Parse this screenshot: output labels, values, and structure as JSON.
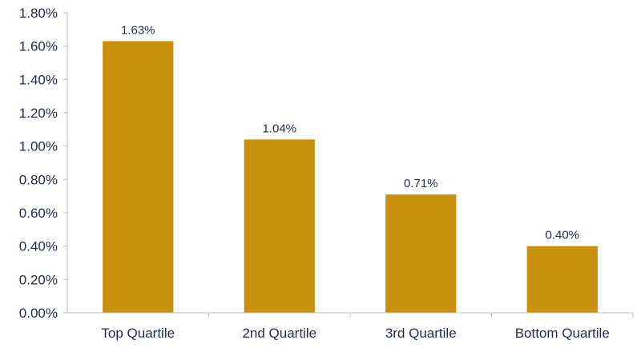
{
  "chart_data": {
    "type": "bar",
    "title": "",
    "xlabel": "",
    "ylabel": "",
    "categories": [
      "Top Quartile",
      "2nd Quartile",
      "3rd Quartile",
      "Bottom Quartile"
    ],
    "values": [
      1.63,
      1.04,
      0.71,
      0.4
    ],
    "data_labels": [
      "1.63%",
      "1.04%",
      "0.71%",
      "0.40%"
    ],
    "ylim": [
      0,
      1.8
    ],
    "yticks": [
      0,
      0.2,
      0.4,
      0.6,
      0.8,
      1.0,
      1.2,
      1.4,
      1.6,
      1.8
    ],
    "ytick_labels": [
      "0.00%",
      "0.20%",
      "0.40%",
      "0.60%",
      "0.80%",
      "1.00%",
      "1.20%",
      "1.40%",
      "1.60%",
      "1.80%"
    ],
    "grid": false,
    "legend": "none",
    "colors": {
      "bar": "#c8900c",
      "axis": "#bfbfbf",
      "text": "#1f2d4a"
    }
  }
}
